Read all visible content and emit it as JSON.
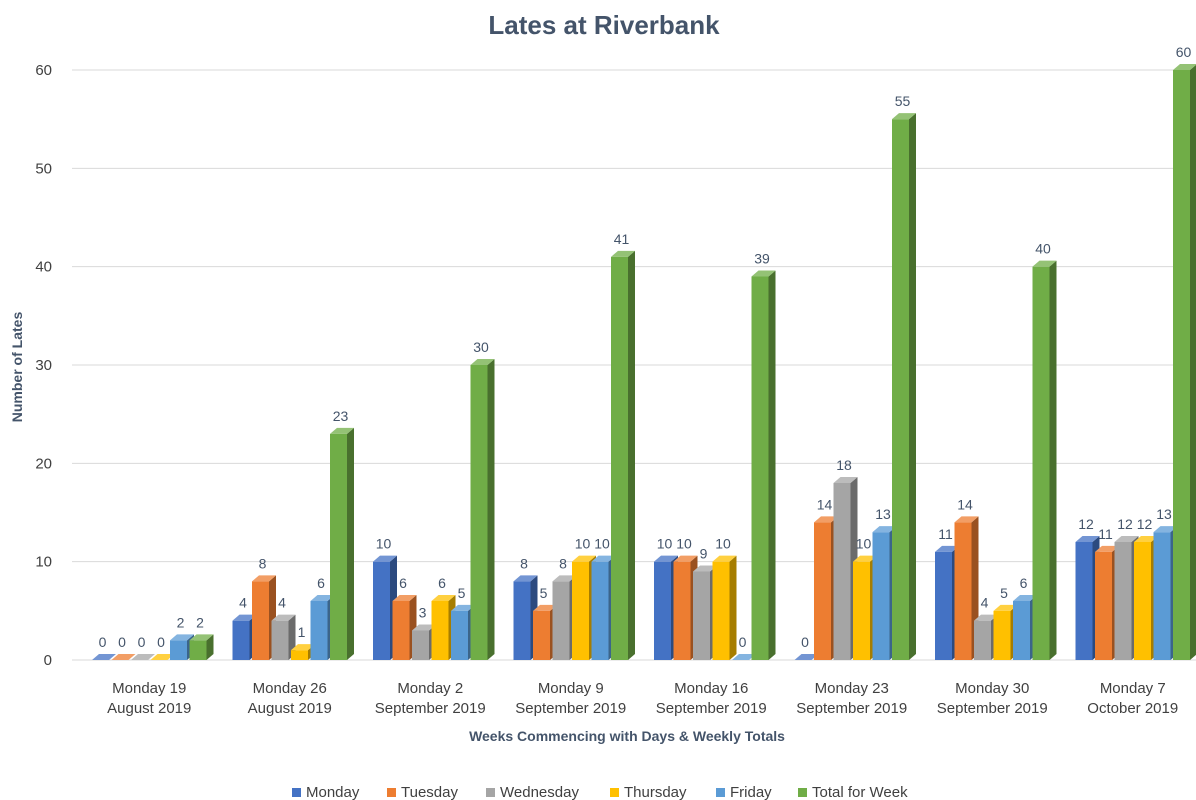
{
  "chart_data": {
    "type": "bar",
    "title": "Lates at Riverbank",
    "xlabel": "Weeks Commencing with Days & Weekly Totals",
    "ylabel": "Number of Lates",
    "ylim": [
      0,
      60
    ],
    "yticks": [
      0,
      10,
      20,
      30,
      40,
      50,
      60
    ],
    "grid": true,
    "legend_position": "bottom",
    "categories": [
      [
        "Monday 19",
        "August 2019"
      ],
      [
        "Monday 26",
        "August 2019"
      ],
      [
        "Monday 2",
        "September 2019"
      ],
      [
        "Monday 9",
        "September 2019"
      ],
      [
        "Monday 16",
        "September 2019"
      ],
      [
        "Monday 23",
        "September 2019"
      ],
      [
        "Monday 30",
        "September 2019"
      ],
      [
        "Monday 7",
        "October 2019"
      ]
    ],
    "series": [
      {
        "name": "Monday",
        "color": "#4472C4",
        "values": [
          0,
          4,
          10,
          8,
          10,
          0,
          11,
          12
        ]
      },
      {
        "name": "Tuesday",
        "color": "#ED7D31",
        "values": [
          0,
          8,
          6,
          5,
          10,
          14,
          14,
          11
        ]
      },
      {
        "name": "Wednesday",
        "color": "#A5A5A5",
        "values": [
          0,
          4,
          3,
          8,
          9,
          18,
          4,
          12
        ]
      },
      {
        "name": "Thursday",
        "color": "#FFC000",
        "values": [
          0,
          1,
          6,
          10,
          10,
          10,
          5,
          12
        ]
      },
      {
        "name": "Friday",
        "color": "#5B9BD5",
        "values": [
          2,
          6,
          5,
          10,
          0,
          13,
          6,
          13
        ]
      },
      {
        "name": "Total for Week",
        "color": "#70AD47",
        "values": [
          2,
          23,
          30,
          41,
          39,
          55,
          40,
          60
        ]
      }
    ]
  }
}
